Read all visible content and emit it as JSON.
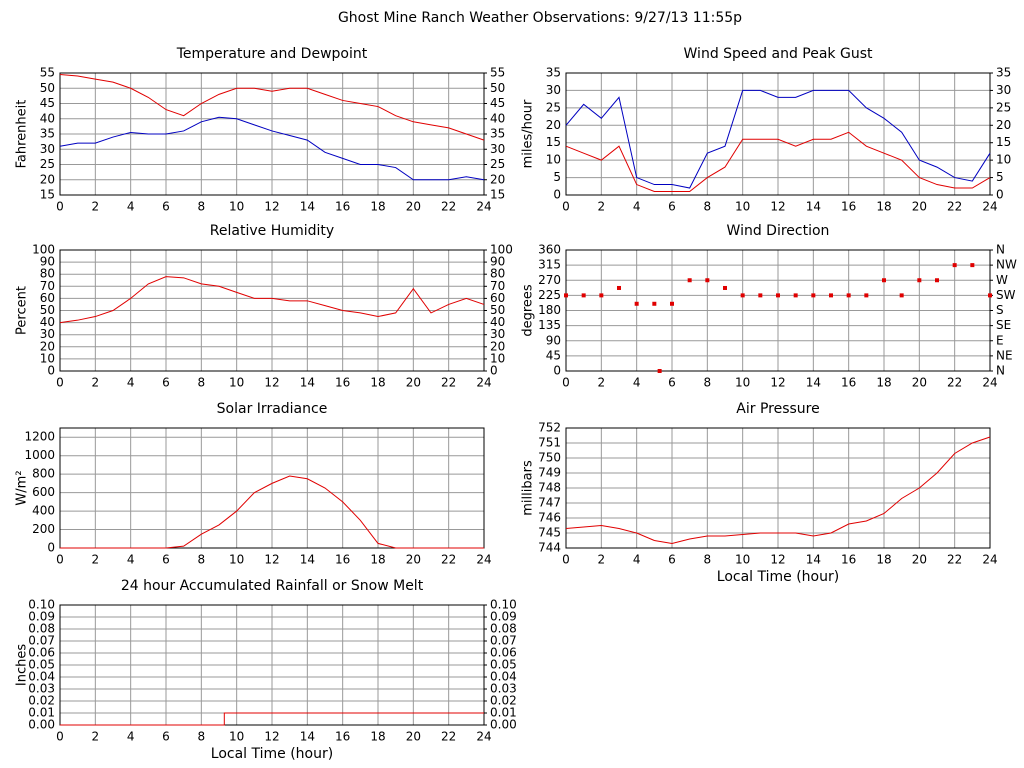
{
  "title": "Ghost Mine Ranch Weather Observations: 9/27/13 11:55p",
  "chart_data": [
    {
      "type": "line",
      "title": "Temperature and Dewpoint",
      "y_label": "Fahrenheit",
      "x": [
        0,
        1,
        2,
        3,
        4,
        5,
        6,
        7,
        8,
        9,
        10,
        11,
        12,
        13,
        14,
        15,
        16,
        17,
        18,
        19,
        20,
        21,
        22,
        23,
        24
      ],
      "xlim": [
        0,
        24
      ],
      "xticks": [
        0,
        2,
        4,
        6,
        8,
        10,
        12,
        14,
        16,
        18,
        20,
        22,
        24
      ],
      "ylim": [
        15,
        55
      ],
      "yticks": [
        15,
        20,
        25,
        30,
        35,
        40,
        45,
        50,
        55
      ],
      "y2lim": [
        15,
        55
      ],
      "y2ticks": [
        15,
        20,
        25,
        30,
        35,
        40,
        45,
        50,
        55
      ],
      "grid": true,
      "series": [
        {
          "name": "Temperature",
          "color": "#e00000",
          "values": [
            54.5,
            54,
            53,
            52,
            50,
            47,
            43,
            41,
            45,
            48,
            50,
            50,
            49,
            50,
            50,
            48,
            46,
            45,
            44,
            41,
            39,
            38,
            37,
            35,
            33
          ]
        },
        {
          "name": "Dewpoint",
          "color": "#0000c0",
          "values": [
            31,
            32,
            32,
            34,
            35.5,
            35,
            35,
            36,
            39,
            40.5,
            40,
            38,
            36,
            34.5,
            33,
            29,
            27,
            25,
            25,
            24,
            20,
            20,
            20,
            21,
            20
          ]
        }
      ]
    },
    {
      "type": "line",
      "title": "Wind Speed and Peak Gust",
      "y_label": "miles/hour",
      "x": [
        0,
        1,
        2,
        3,
        4,
        5,
        6,
        7,
        8,
        9,
        10,
        11,
        12,
        13,
        14,
        15,
        16,
        17,
        18,
        19,
        20,
        21,
        22,
        23,
        24
      ],
      "xlim": [
        0,
        24
      ],
      "xticks": [
        0,
        2,
        4,
        6,
        8,
        10,
        12,
        14,
        16,
        18,
        20,
        22,
        24
      ],
      "ylim": [
        0,
        35
      ],
      "yticks": [
        0,
        5,
        10,
        15,
        20,
        25,
        30,
        35
      ],
      "y2lim": [
        0,
        35
      ],
      "y2ticks": [
        0,
        5,
        10,
        15,
        20,
        25,
        30,
        35
      ],
      "grid": true,
      "series": [
        {
          "name": "Peak Gust",
          "color": "#0000c0",
          "values": [
            20,
            26,
            22,
            28,
            5,
            3,
            3,
            2,
            12,
            14,
            30,
            30,
            28,
            28,
            30,
            30,
            30,
            25,
            22,
            18,
            10,
            8,
            5,
            4,
            12
          ]
        },
        {
          "name": "Wind Speed",
          "color": "#e00000",
          "values": [
            14,
            12,
            10,
            14,
            3,
            1,
            1,
            1,
            5,
            8,
            16,
            16,
            16,
            14,
            16,
            16,
            18,
            14,
            12,
            10,
            5,
            3,
            2,
            2,
            5
          ]
        }
      ]
    },
    {
      "type": "line",
      "title": "Relative Humidity",
      "y_label": "Percent",
      "x": [
        0,
        1,
        2,
        3,
        4,
        5,
        6,
        7,
        8,
        9,
        10,
        11,
        12,
        13,
        14,
        15,
        16,
        17,
        18,
        19,
        20,
        21,
        22,
        23,
        24
      ],
      "xlim": [
        0,
        24
      ],
      "xticks": [
        0,
        2,
        4,
        6,
        8,
        10,
        12,
        14,
        16,
        18,
        20,
        22,
        24
      ],
      "ylim": [
        0,
        100
      ],
      "yticks": [
        0,
        10,
        20,
        30,
        40,
        50,
        60,
        70,
        80,
        90,
        100
      ],
      "y2lim": [
        0,
        100
      ],
      "y2ticks": [
        0,
        10,
        20,
        30,
        40,
        50,
        60,
        70,
        80,
        90,
        100
      ],
      "grid": true,
      "series": [
        {
          "name": "Relative Humidity",
          "color": "#e00000",
          "values": [
            40,
            42,
            45,
            50,
            60,
            72,
            78,
            77,
            72,
            70,
            65,
            60,
            60,
            58,
            58,
            54,
            50,
            48,
            45,
            48,
            68,
            48,
            55,
            60,
            55
          ]
        }
      ]
    },
    {
      "type": "scatter",
      "title": "Wind Direction",
      "y_label": "degrees",
      "x": [
        0,
        1,
        2,
        3,
        4,
        5,
        5.3,
        6,
        7,
        8,
        9,
        10,
        11,
        12,
        13,
        14,
        15,
        16,
        17,
        18,
        19,
        20,
        21,
        22,
        23,
        24
      ],
      "xlim": [
        0,
        24
      ],
      "xticks": [
        0,
        2,
        4,
        6,
        8,
        10,
        12,
        14,
        16,
        18,
        20,
        22,
        24
      ],
      "ylim": [
        0,
        360
      ],
      "yticks": [
        0,
        45,
        90,
        135,
        180,
        225,
        270,
        315,
        360
      ],
      "y2lim": [
        0,
        360
      ],
      "y2ticks": [
        {
          "value": 0,
          "label": "N"
        },
        {
          "value": 45,
          "label": "NE"
        },
        {
          "value": 90,
          "label": "E"
        },
        {
          "value": 135,
          "label": "SE"
        },
        {
          "value": 180,
          "label": "S"
        },
        {
          "value": 225,
          "label": "SW"
        },
        {
          "value": 270,
          "label": "W"
        },
        {
          "value": 315,
          "label": "NW"
        },
        {
          "value": 360,
          "label": "N"
        }
      ],
      "grid": true,
      "series": [
        {
          "name": "Wind Direction",
          "color": "#e00000",
          "values": [
            225,
            225,
            225,
            247,
            200,
            200,
            0,
            200,
            270,
            270,
            247,
            225,
            225,
            225,
            225,
            225,
            225,
            225,
            225,
            270,
            225,
            270,
            270,
            315,
            315,
            225
          ]
        }
      ]
    },
    {
      "type": "line",
      "title": "Solar Irradiance",
      "y_label": "W/m²",
      "x": [
        0,
        1,
        2,
        3,
        4,
        5,
        6,
        7,
        8,
        9,
        10,
        11,
        12,
        13,
        14,
        15,
        16,
        17,
        18,
        19,
        20,
        21,
        22,
        23,
        24
      ],
      "xlim": [
        0,
        24
      ],
      "xticks": [
        0,
        2,
        4,
        6,
        8,
        10,
        12,
        14,
        16,
        18,
        20,
        22,
        24
      ],
      "ylim": [
        0,
        1300
      ],
      "yticks": [
        0,
        200,
        400,
        600,
        800,
        1000,
        1200
      ],
      "grid": true,
      "series": [
        {
          "name": "Solar Irradiance",
          "color": "#e00000",
          "values": [
            0,
            0,
            0,
            0,
            0,
            0,
            0,
            20,
            150,
            250,
            400,
            600,
            700,
            780,
            750,
            650,
            500,
            300,
            50,
            0,
            0,
            0,
            0,
            0,
            0
          ]
        }
      ]
    },
    {
      "type": "line",
      "title": "Air Pressure",
      "y_label": "millibars",
      "x_label": "Local Time (hour)",
      "x": [
        0,
        1,
        2,
        3,
        4,
        5,
        6,
        7,
        8,
        9,
        10,
        11,
        12,
        13,
        14,
        15,
        16,
        17,
        18,
        19,
        20,
        21,
        22,
        23,
        24
      ],
      "xlim": [
        0,
        24
      ],
      "xticks": [
        0,
        2,
        4,
        6,
        8,
        10,
        12,
        14,
        16,
        18,
        20,
        22,
        24
      ],
      "ylim": [
        744,
        752
      ],
      "yticks": [
        744,
        745,
        746,
        747,
        748,
        749,
        750,
        751,
        752
      ],
      "grid": true,
      "series": [
        {
          "name": "Air Pressure",
          "color": "#e00000",
          "values": [
            745.3,
            745.4,
            745.5,
            745.3,
            745.0,
            744.5,
            744.3,
            744.6,
            744.8,
            744.8,
            744.9,
            745.0,
            745.0,
            745.0,
            744.8,
            745.0,
            745.6,
            745.8,
            746.3,
            747.3,
            748.0,
            749.0,
            750.3,
            751.0,
            751.4
          ]
        }
      ]
    },
    {
      "type": "line",
      "title": "24 hour Accumulated Rainfall or Snow Melt",
      "y_label": "Inches",
      "x_label": "Local Time (hour)",
      "x": [
        0,
        9.3,
        9.3,
        24
      ],
      "xlim": [
        0,
        24
      ],
      "xticks": [
        0,
        2,
        4,
        6,
        8,
        10,
        12,
        14,
        16,
        18,
        20,
        22,
        24
      ],
      "ylim": [
        0,
        0.1
      ],
      "yticks": [
        {
          "value": 0,
          "label": "0.00"
        },
        {
          "value": 0.01,
          "label": "0.01"
        },
        {
          "value": 0.02,
          "label": "0.02"
        },
        {
          "value": 0.03,
          "label": "0.03"
        },
        {
          "value": 0.04,
          "label": "0.04"
        },
        {
          "value": 0.05,
          "label": "0.05"
        },
        {
          "value": 0.06,
          "label": "0.06"
        },
        {
          "value": 0.07,
          "label": "0.07"
        },
        {
          "value": 0.08,
          "label": "0.08"
        },
        {
          "value": 0.09,
          "label": "0.09"
        },
        {
          "value": 0.1,
          "label": "0.10"
        }
      ],
      "y2lim": [
        0,
        0.1
      ],
      "y2ticks": [
        {
          "value": 0,
          "label": "0.00"
        },
        {
          "value": 0.01,
          "label": "0.01"
        },
        {
          "value": 0.02,
          "label": "0.02"
        },
        {
          "value": 0.03,
          "label": "0.03"
        },
        {
          "value": 0.04,
          "label": "0.04"
        },
        {
          "value": 0.05,
          "label": "0.05"
        },
        {
          "value": 0.06,
          "label": "0.06"
        },
        {
          "value": 0.07,
          "label": "0.07"
        },
        {
          "value": 0.08,
          "label": "0.08"
        },
        {
          "value": 0.09,
          "label": "0.09"
        },
        {
          "value": 0.1,
          "label": "0.10"
        }
      ],
      "grid": true,
      "series": [
        {
          "name": "Rainfall",
          "color": "#e00000",
          "values": [
            0,
            0,
            0.01,
            0.01
          ]
        }
      ]
    }
  ]
}
